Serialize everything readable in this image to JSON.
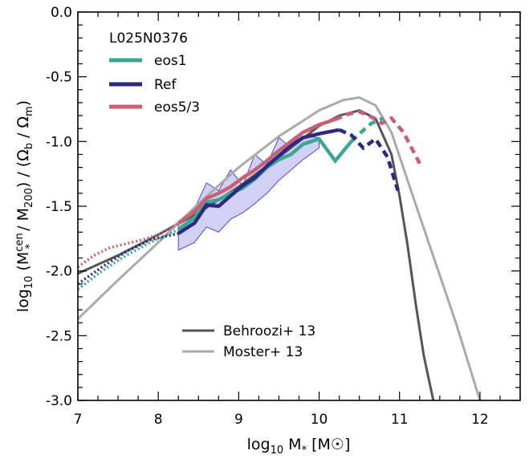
{
  "chart_data": {
    "type": "line",
    "title": "",
    "xlabel": "log10 M* [M☉]",
    "ylabel": "log10 (M*cen / M200) / (Ωb / Ωm)",
    "xlim": [
      7,
      12.5
    ],
    "ylim": [
      -3.0,
      0.0
    ],
    "x_ticks": [
      "7",
      "8",
      "9",
      "10",
      "11",
      "12"
    ],
    "x_tick_values": [
      7,
      8,
      9,
      10,
      11,
      12
    ],
    "y_ticks": [
      "0.0",
      "-0.5",
      "-1.0",
      "-1.5",
      "-2.0",
      "-2.5",
      "-3.0"
    ],
    "y_tick_values": [
      0.0,
      -0.5,
      -1.0,
      -1.5,
      -2.0,
      -2.5,
      -3.0
    ],
    "grid": false,
    "legend_top": {
      "title": "L025N0376",
      "placement": "top-left",
      "entries": [
        "eos1",
        "Ref",
        "eos5/3"
      ]
    },
    "legend_bottom": {
      "placement": "bottom-center",
      "entries": [
        "Behroozi+ 13",
        "Moster+ 13"
      ]
    },
    "colors": {
      "eos1": "#3aa794",
      "Ref": "#2b2a82",
      "eos5/3": "#c96074",
      "Behroozi+ 13": "#555555",
      "Moster+ 13": "#aaaaaa",
      "band": "#c9c9f5",
      "band_edge": "#4b4bd0"
    },
    "band": {
      "name": "Ref",
      "x": [
        8.25,
        8.45,
        8.6,
        8.75,
        8.9,
        9.05,
        9.2,
        9.35,
        9.5,
        9.65,
        9.8,
        10.0
      ],
      "upper": [
        -1.63,
        -1.52,
        -1.32,
        -1.38,
        -1.22,
        -1.34,
        -1.1,
        -1.18,
        -0.97,
        -1.05,
        -0.96,
        -0.97
      ],
      "lower": [
        -1.84,
        -1.78,
        -1.66,
        -1.7,
        -1.6,
        -1.55,
        -1.48,
        -1.4,
        -1.3,
        -1.22,
        -1.14,
        -1.05
      ]
    },
    "series": [
      {
        "name": "Behroozi+ 13",
        "style": "solid",
        "x": [
          7.0,
          7.5,
          8.0,
          8.5,
          9.0,
          9.5,
          10.0,
          10.25,
          10.5,
          10.7,
          10.9,
          11.0,
          11.1,
          11.2,
          11.3,
          11.42
        ],
        "y": [
          -2.02,
          -1.88,
          -1.72,
          -1.55,
          -1.35,
          -1.12,
          -0.88,
          -0.8,
          -0.76,
          -0.82,
          -1.1,
          -1.42,
          -1.8,
          -2.25,
          -2.65,
          -3.0
        ]
      },
      {
        "name": "Moster+ 13",
        "style": "solid",
        "x": [
          7.0,
          7.5,
          8.0,
          8.5,
          9.0,
          9.5,
          10.0,
          10.3,
          10.5,
          10.7,
          10.9,
          11.1,
          11.4,
          11.7,
          12.0
        ],
        "y": [
          -2.37,
          -2.07,
          -1.78,
          -1.48,
          -1.2,
          -0.96,
          -0.76,
          -0.68,
          -0.66,
          -0.72,
          -0.93,
          -1.3,
          -1.85,
          -2.4,
          -3.0
        ]
      },
      {
        "name": "eos1",
        "style": "solid",
        "x": [
          8.25,
          8.45,
          8.6,
          8.75,
          8.9,
          9.05,
          9.2,
          9.35,
          9.5,
          9.65,
          9.8,
          10.0,
          10.2,
          10.4
        ],
        "y": [
          -1.68,
          -1.59,
          -1.47,
          -1.45,
          -1.4,
          -1.36,
          -1.29,
          -1.2,
          -1.14,
          -1.1,
          -1.02,
          -0.98,
          -1.15,
          -1.0
        ]
      },
      {
        "name": "eos1 (extrapolated)",
        "style": "dotted",
        "x": [
          7.0,
          7.3,
          7.6,
          7.9,
          8.25
        ],
        "y": [
          -2.14,
          -2.0,
          -1.88,
          -1.78,
          -1.68
        ]
      },
      {
        "name": "eos1 (dashed)",
        "style": "dashed",
        "x": [
          10.4,
          10.52,
          10.65,
          10.8
        ],
        "y": [
          -1.0,
          -0.93,
          -0.86,
          -0.82
        ]
      },
      {
        "name": "Ref",
        "style": "solid",
        "x": [
          8.25,
          8.45,
          8.6,
          8.75,
          8.9,
          9.05,
          9.2,
          9.35,
          9.5,
          9.65,
          9.8,
          10.0,
          10.25
        ],
        "y": [
          -1.71,
          -1.63,
          -1.49,
          -1.5,
          -1.42,
          -1.34,
          -1.28,
          -1.19,
          -1.11,
          -1.03,
          -0.97,
          -0.94,
          -0.91
        ]
      },
      {
        "name": "Ref (extrapolated)",
        "style": "dotted",
        "x": [
          7.0,
          7.3,
          7.6,
          7.9,
          8.25
        ],
        "y": [
          -2.1,
          -1.97,
          -1.85,
          -1.76,
          -1.71
        ]
      },
      {
        "name": "Ref (dashed)",
        "style": "dashed",
        "x": [
          10.25,
          10.4,
          10.55,
          10.7,
          10.85,
          10.98
        ],
        "y": [
          -0.91,
          -0.95,
          -1.05,
          -0.98,
          -1.12,
          -1.38
        ]
      },
      {
        "name": "eos5/3",
        "style": "solid",
        "x": [
          8.25,
          8.45,
          8.6,
          8.75,
          8.9,
          9.05,
          9.2,
          9.35,
          9.5,
          9.65,
          9.8,
          10.0,
          10.2
        ],
        "y": [
          -1.63,
          -1.54,
          -1.44,
          -1.4,
          -1.35,
          -1.28,
          -1.22,
          -1.15,
          -1.07,
          -1.0,
          -0.93,
          -0.87,
          -0.83
        ]
      },
      {
        "name": "eos5/3 (extrapolated)",
        "style": "dotted",
        "x": [
          7.0,
          7.2,
          7.4,
          7.6,
          7.8,
          8.0,
          8.25
        ],
        "y": [
          -1.97,
          -1.88,
          -1.82,
          -1.79,
          -1.76,
          -1.72,
          -1.63
        ]
      },
      {
        "name": "eos5/3 (dashed)",
        "style": "dashed",
        "x": [
          10.2,
          10.35,
          10.5,
          10.65,
          10.78,
          10.9,
          11.05,
          11.25
        ],
        "y": [
          -0.83,
          -0.79,
          -0.77,
          -0.81,
          -0.86,
          -0.82,
          -0.93,
          -1.17
        ]
      }
    ]
  }
}
